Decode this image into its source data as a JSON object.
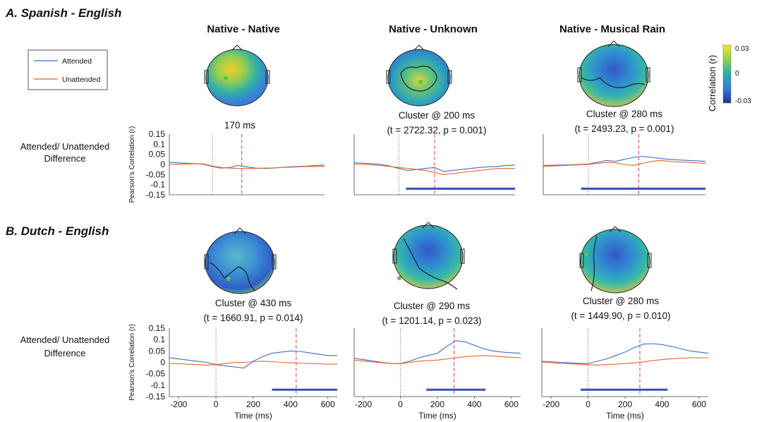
{
  "figure": {
    "sections": [
      {
        "title": "A. Spanish - English"
      },
      {
        "title": "B. Dutch - English"
      }
    ],
    "columns": [
      "Native - Native",
      "Native - Unknown",
      "Native - Musical Rain"
    ],
    "row_label_line1": "Attended/ Unattended",
    "row_label_line2": "Difference",
    "legend": {
      "attended": "Attended",
      "unattended": "Unattended"
    },
    "colorbar": {
      "label": "Correlation (r)",
      "max": "0.03",
      "mid": "0",
      "min": "-0.03"
    },
    "colors": {
      "attended": "#3b6fc4",
      "unattended": "#e8632b",
      "cluster_bar": "#3a4fb8",
      "peak_line": "#e04040"
    },
    "annotations": [
      {
        "line1": "170 ms",
        "line2": ""
      },
      {
        "line1": "Cluster @ 200 ms",
        "line2": "(t = 2722.32, p = 0.001)"
      },
      {
        "line1": "Cluster @ 280 ms",
        "line2": "(t = 2493.23, p = 0.001)"
      },
      {
        "line1": "Cluster @ 430 ms",
        "line2": "(t = 1660.91, p = 0.014)"
      },
      {
        "line1": "Cluster @ 290 ms",
        "line2": "(t = 1201.14, p = 0.023)"
      },
      {
        "line1": "Cluster @ 280 ms",
        "line2": "(t = 1449.90, p = 0.010)"
      }
    ]
  },
  "chart_data": [
    {
      "type": "line",
      "x": [
        -250,
        -200,
        -150,
        -100,
        -50,
        0,
        50,
        100,
        150,
        200,
        250,
        300,
        350,
        400,
        450,
        500,
        550,
        600,
        650
      ],
      "series": [
        {
          "name": "Attended",
          "values": [
            0.01,
            0.008,
            0.006,
            0.004,
            0.0,
            -0.01,
            -0.018,
            -0.015,
            -0.005,
            -0.012,
            -0.018,
            -0.02,
            -0.018,
            -0.015,
            -0.012,
            -0.01,
            -0.008,
            -0.005,
            -0.004
          ]
        },
        {
          "name": "Unattended",
          "values": [
            0.0,
            0.001,
            0.002,
            0.003,
            0.002,
            -0.008,
            -0.015,
            -0.018,
            -0.02,
            -0.02,
            -0.02,
            -0.018,
            -0.017,
            -0.015,
            -0.014,
            -0.012,
            -0.01,
            -0.01,
            -0.01
          ]
        }
      ],
      "peak_ms": 170,
      "cluster": null,
      "ylim": [
        -0.15,
        0.15
      ],
      "xlim": [
        -250,
        650
      ]
    },
    {
      "type": "line",
      "x": [
        -250,
        -200,
        -150,
        -100,
        -50,
        0,
        50,
        100,
        150,
        200,
        250,
        300,
        350,
        400,
        450,
        500,
        550,
        600,
        650
      ],
      "series": [
        {
          "name": "Attended",
          "values": [
            0.008,
            0.006,
            0.004,
            0.0,
            -0.008,
            -0.02,
            -0.03,
            -0.025,
            -0.02,
            -0.015,
            -0.035,
            -0.03,
            -0.025,
            -0.02,
            -0.015,
            -0.012,
            -0.01,
            -0.005,
            -0.004
          ]
        },
        {
          "name": "Unattended",
          "values": [
            0.0,
            0.0,
            -0.002,
            -0.005,
            -0.01,
            -0.015,
            -0.02,
            -0.025,
            -0.03,
            -0.04,
            -0.05,
            -0.045,
            -0.04,
            -0.035,
            -0.03,
            -0.025,
            -0.02,
            -0.02,
            -0.02
          ]
        }
      ],
      "peak_ms": 200,
      "cluster": [
        40,
        650
      ],
      "ylim": [
        -0.15,
        0.15
      ],
      "xlim": [
        -250,
        650
      ]
    },
    {
      "type": "line",
      "x": [
        -250,
        -200,
        -150,
        -100,
        -50,
        0,
        50,
        100,
        150,
        200,
        250,
        300,
        350,
        400,
        450,
        500,
        550,
        600,
        650
      ],
      "series": [
        {
          "name": "Attended",
          "values": [
            -0.005,
            -0.004,
            -0.003,
            -0.002,
            0.0,
            0.002,
            0.01,
            0.02,
            0.015,
            0.025,
            0.035,
            0.04,
            0.035,
            0.03,
            0.025,
            0.022,
            0.02,
            0.018,
            0.015
          ]
        },
        {
          "name": "Unattended",
          "values": [
            -0.01,
            -0.008,
            -0.006,
            -0.004,
            -0.002,
            0.0,
            0.005,
            0.01,
            0.008,
            0.0,
            -0.005,
            0.005,
            0.015,
            0.02,
            0.015,
            0.012,
            0.01,
            0.008,
            0.005
          ]
        }
      ],
      "peak_ms": 280,
      "cluster": [
        -40,
        650
      ],
      "ylim": [
        -0.15,
        0.15
      ],
      "xlim": [
        -250,
        650
      ]
    },
    {
      "type": "line",
      "x": [
        -250,
        -200,
        -150,
        -100,
        -50,
        0,
        50,
        100,
        150,
        200,
        250,
        300,
        350,
        400,
        450,
        500,
        550,
        600,
        650
      ],
      "series": [
        {
          "name": "Attended",
          "values": [
            0.02,
            0.015,
            0.01,
            0.005,
            0.0,
            -0.01,
            -0.015,
            -0.02,
            -0.025,
            0.005,
            0.025,
            0.04,
            0.045,
            0.05,
            0.048,
            0.042,
            0.036,
            0.03,
            0.03
          ]
        },
        {
          "name": "Unattended",
          "values": [
            -0.005,
            -0.006,
            -0.008,
            -0.01,
            -0.012,
            -0.01,
            -0.005,
            0.0,
            0.0,
            0.003,
            0.005,
            0.003,
            0.0,
            -0.002,
            -0.003,
            -0.005,
            -0.006,
            -0.008,
            -0.008
          ]
        }
      ],
      "peak_ms": 430,
      "cluster": [
        300,
        650
      ],
      "ylim": [
        -0.15,
        0.15
      ],
      "xlim": [
        -250,
        650
      ]
    },
    {
      "type": "line",
      "x": [
        -250,
        -200,
        -150,
        -100,
        -50,
        0,
        50,
        100,
        150,
        200,
        250,
        300,
        350,
        400,
        450,
        500,
        550,
        600,
        650
      ],
      "series": [
        {
          "name": "Attended",
          "values": [
            0.018,
            0.012,
            0.006,
            0.0,
            -0.005,
            -0.005,
            0.005,
            0.02,
            0.03,
            0.04,
            0.07,
            0.095,
            0.09,
            0.075,
            0.06,
            0.05,
            0.045,
            0.042,
            0.04
          ]
        },
        {
          "name": "Unattended",
          "values": [
            0.01,
            0.006,
            0.002,
            -0.002,
            -0.005,
            -0.006,
            0.0,
            0.005,
            0.008,
            0.01,
            0.015,
            0.02,
            0.025,
            0.028,
            0.03,
            0.028,
            0.025,
            0.022,
            0.02
          ]
        }
      ],
      "peak_ms": 290,
      "cluster": [
        140,
        460
      ],
      "ylim": [
        -0.15,
        0.15
      ],
      "xlim": [
        -250,
        650
      ]
    },
    {
      "type": "line",
      "x": [
        -250,
        -200,
        -150,
        -100,
        -50,
        0,
        50,
        100,
        150,
        200,
        250,
        300,
        350,
        400,
        450,
        500,
        550,
        600,
        650
      ],
      "series": [
        {
          "name": "Attended",
          "values": [
            0.005,
            0.003,
            0.0,
            -0.002,
            -0.005,
            -0.005,
            0.005,
            0.015,
            0.03,
            0.045,
            0.065,
            0.08,
            0.082,
            0.078,
            0.07,
            0.06,
            0.05,
            0.045,
            0.04
          ]
        },
        {
          "name": "Unattended",
          "values": [
            0.0,
            -0.002,
            -0.004,
            -0.006,
            -0.008,
            -0.01,
            -0.012,
            -0.01,
            -0.008,
            -0.005,
            -0.002,
            0.002,
            0.008,
            0.012,
            0.016,
            0.018,
            0.02,
            0.02,
            0.02
          ]
        }
      ],
      "peak_ms": 280,
      "cluster": [
        -40,
        430
      ],
      "ylim": [
        -0.15,
        0.15
      ],
      "xlim": [
        -250,
        650
      ]
    }
  ]
}
